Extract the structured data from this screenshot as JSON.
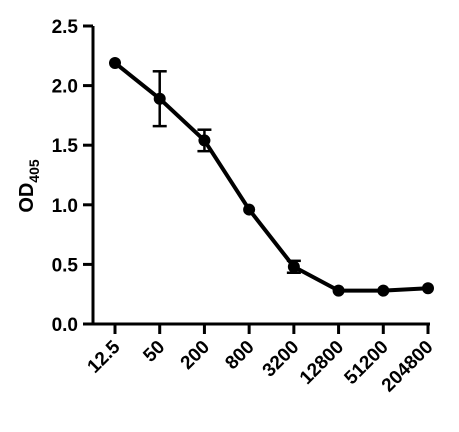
{
  "chart_data": {
    "type": "line",
    "title": "",
    "xlabel": "",
    "ylabel": "OD",
    "ylabel_subscript": "405",
    "x_categories": [
      "12.5",
      "50",
      "200",
      "800",
      "3200",
      "12800",
      "51200",
      "204800"
    ],
    "series": [
      {
        "values": [
          2.19,
          1.89,
          1.54,
          0.96,
          0.48,
          0.28,
          0.28,
          0.3
        ],
        "error": [
          0.0,
          0.23,
          0.09,
          0.0,
          0.05,
          0.0,
          0.0,
          0.0
        ]
      }
    ],
    "ylim": [
      0,
      2.5
    ],
    "y_ticks": [
      0.0,
      0.5,
      1.0,
      1.5,
      2.0,
      2.5
    ],
    "y_tick_labels": [
      "0.0",
      "0.5",
      "1.0",
      "1.5",
      "2.0",
      "2.5"
    ],
    "grid": false,
    "legend": "none",
    "color": "#000000"
  }
}
